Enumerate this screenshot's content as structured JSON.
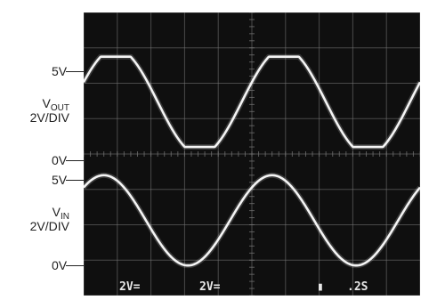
{
  "chart_data": {
    "type": "line",
    "title": "",
    "xlabel": "",
    "ylabel": "",
    "grid": true,
    "x": {
      "range": [
        0,
        10
      ],
      "unit": "div"
    },
    "y": {
      "range": [
        0,
        8
      ],
      "unit": "div"
    },
    "series": [
      {
        "name": "VOUT",
        "label_main": "V",
        "label_sub": "OUT",
        "scale": "2V/DIV",
        "ref_high": "5V",
        "ref_low": "0V",
        "high_div": 6.75,
        "low_div": 4.2,
        "period_div": 5.0,
        "phase_div": 0.95,
        "clip": true,
        "points_div": [
          [
            0,
            6.62
          ],
          [
            0.5,
            6.75
          ],
          [
            1.0,
            6.75
          ],
          [
            1.5,
            6.5
          ],
          [
            2.0,
            5.9
          ],
          [
            2.5,
            5.05
          ],
          [
            3.0,
            4.4
          ],
          [
            3.4,
            4.2
          ],
          [
            3.9,
            4.2
          ],
          [
            4.5,
            4.7
          ],
          [
            5.0,
            5.45
          ],
          [
            5.5,
            6.25
          ],
          [
            5.95,
            6.75
          ],
          [
            6.5,
            6.75
          ],
          [
            7.0,
            6.3
          ],
          [
            7.5,
            5.6
          ],
          [
            8.0,
            4.8
          ],
          [
            8.4,
            4.2
          ],
          [
            8.9,
            4.2
          ],
          [
            9.5,
            4.7
          ],
          [
            10.0,
            5.35
          ]
        ]
      },
      {
        "name": "VIN",
        "label_main": "V",
        "label_sub": "IN",
        "scale": "2V/DIV",
        "ref_high": "5V",
        "ref_low": "0V",
        "high_div": 3.4,
        "low_div": 0.85,
        "period_div": 5.0,
        "phase_div": 0.6,
        "clip": false,
        "points_div": [
          [
            0,
            3.1
          ],
          [
            0.6,
            3.4
          ],
          [
            1.2,
            3.1
          ],
          [
            1.8,
            2.45
          ],
          [
            2.4,
            1.6
          ],
          [
            3.0,
            1.0
          ],
          [
            3.35,
            0.85
          ],
          [
            3.7,
            0.95
          ],
          [
            4.3,
            1.45
          ],
          [
            4.9,
            2.35
          ],
          [
            5.6,
            3.4
          ],
          [
            6.2,
            3.1
          ],
          [
            6.8,
            2.45
          ],
          [
            7.4,
            1.6
          ],
          [
            8.0,
            1.0
          ],
          [
            8.35,
            0.85
          ],
          [
            8.7,
            0.95
          ],
          [
            9.3,
            1.45
          ],
          [
            10.0,
            2.45
          ]
        ]
      }
    ]
  },
  "scope_readout": {
    "ch1": "2V=",
    "ch2": "2V=",
    "marker": "▮",
    "timebase": ".2S"
  },
  "colors": {
    "screen": "#0f0f0f",
    "grid": "#7a7a7a",
    "trace": "#f4f4f4",
    "label": "#222222"
  }
}
